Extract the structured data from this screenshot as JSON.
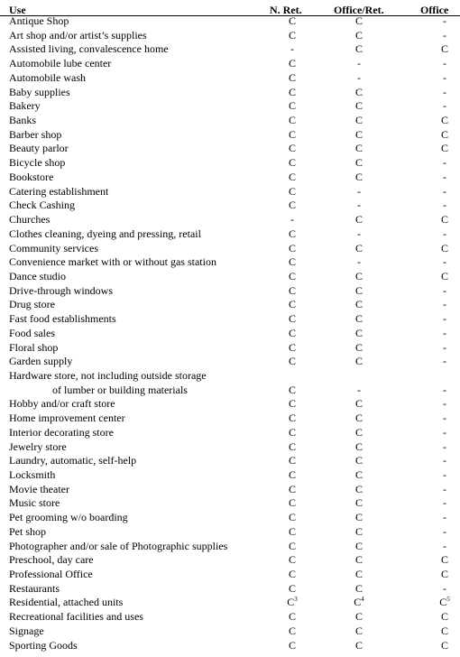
{
  "headers": {
    "use": "Use",
    "n_ret": "N. Ret.",
    "office_ret": "Office/Ret.",
    "office": "Office"
  },
  "rows": [
    {
      "use": "Antique Shop",
      "n": "C",
      "or": "C",
      "o": "-"
    },
    {
      "use": "Art shop and/or artist’s supplies",
      "n": "C",
      "or": "C",
      "o": "-"
    },
    {
      "use": "Assisted living, convalescence home",
      "n": "-",
      "or": "C",
      "o": "C"
    },
    {
      "use": "Automobile lube center",
      "n": "C",
      "or": "-",
      "o": "-"
    },
    {
      "use": "Automobile wash",
      "n": "C",
      "or": "-",
      "o": "-"
    },
    {
      "use": "Baby supplies",
      "n": "C",
      "or": "C",
      "o": "-"
    },
    {
      "use": "Bakery",
      "n": "C",
      "or": "C",
      "o": "-"
    },
    {
      "use": "Banks",
      "n": "C",
      "or": "C",
      "o": "C"
    },
    {
      "use": "Barber shop",
      "n": "C",
      "or": "C",
      "o": "C"
    },
    {
      "use": "Beauty parlor",
      "n": "C",
      "or": "C",
      "o": "C"
    },
    {
      "use": "Bicycle shop",
      "n": "C",
      "or": "C",
      "o": "-"
    },
    {
      "use": "Bookstore",
      "n": "C",
      "or": "C",
      "o": "-"
    },
    {
      "use": "Catering establishment",
      "n": "C",
      "or": "-",
      "o": "-"
    },
    {
      "use": "Check Cashing",
      "n": "C",
      "or": "-",
      "o": "-"
    },
    {
      "use": "Churches",
      "n": "-",
      "or": "C",
      "o": "C"
    },
    {
      "use": "Clothes cleaning, dyeing and pressing, retail",
      "n": "C",
      "or": "-",
      "o": "-"
    },
    {
      "use": "Community services",
      "n": "C",
      "or": "C",
      "o": "C"
    },
    {
      "use": "Convenience market with or without gas station",
      "n": "C",
      "or": "-",
      "o": "-"
    },
    {
      "use": "Dance studio",
      "n": "C",
      "or": "C",
      "o": "C"
    },
    {
      "use": "Drive-through windows",
      "n": "C",
      "or": "C",
      "o": "-"
    },
    {
      "use": "Drug store",
      "n": "C",
      "or": "C",
      "o": "-"
    },
    {
      "use": "Fast food establishments",
      "n": "C",
      "or": "C",
      "o": "-"
    },
    {
      "use": "Food sales",
      "n": "C",
      "or": "C",
      "o": "-"
    },
    {
      "use": "Floral shop",
      "n": "C",
      "or": "C",
      "o": "-"
    },
    {
      "use": "Garden supply",
      "n": "C",
      "or": "C",
      "o": "-"
    },
    {
      "use": "Hardware store, not including outside storage",
      "n": "",
      "or": "",
      "o": ""
    },
    {
      "use": "of lumber or building materials",
      "indent": true,
      "n": "C",
      "or": "-",
      "o": "-"
    },
    {
      "use": "Hobby and/or craft store",
      "n": "C",
      "or": "C",
      "o": "-"
    },
    {
      "use": "Home improvement center",
      "n": "C",
      "or": "C",
      "o": "-"
    },
    {
      "use": "Interior decorating store",
      "n": "C",
      "or": "C",
      "o": "-"
    },
    {
      "use": "Jewelry store",
      "n": "C",
      "or": "C",
      "o": "-"
    },
    {
      "use": "Laundry, automatic, self-help",
      "n": "C",
      "or": "C",
      "o": "-"
    },
    {
      "use": "Locksmith",
      "n": "C",
      "or": "C",
      "o": "-"
    },
    {
      "use": "Movie theater",
      "n": "C",
      "or": "C",
      "o": "-"
    },
    {
      "use": "Music store",
      "n": "C",
      "or": "C",
      "o": "-"
    },
    {
      "use": "Pet grooming w/o boarding",
      "n": "C",
      "or": "C",
      "o": "-"
    },
    {
      "use": "Pet shop",
      "n": "C",
      "or": "C",
      "o": "-"
    },
    {
      "use": "Photographer and/or sale of Photographic supplies",
      "n": "C",
      "or": "C",
      "o": "-"
    },
    {
      "use": "Preschool, day care",
      "n": "C",
      "or": "C",
      "o": "C"
    },
    {
      "use": "Professional Office",
      "n": "C",
      "or": "C",
      "o": "C"
    },
    {
      "use": "Restaurants",
      "n": "C",
      "or": "C",
      "o": "-"
    },
    {
      "use": "Residential, attached units",
      "n": "C",
      "n_sup": "3",
      "or": "C",
      "or_sup": "4",
      "o": "C",
      "o_sup": "5"
    },
    {
      "use": "Recreational facilities and uses",
      "n": "C",
      "or": "C",
      "o": "C"
    },
    {
      "use": "Signage",
      "n": "C",
      "or": "C",
      "o": "C"
    },
    {
      "use": "Sporting Goods",
      "n": "C",
      "or": "C",
      "o": "C"
    }
  ]
}
